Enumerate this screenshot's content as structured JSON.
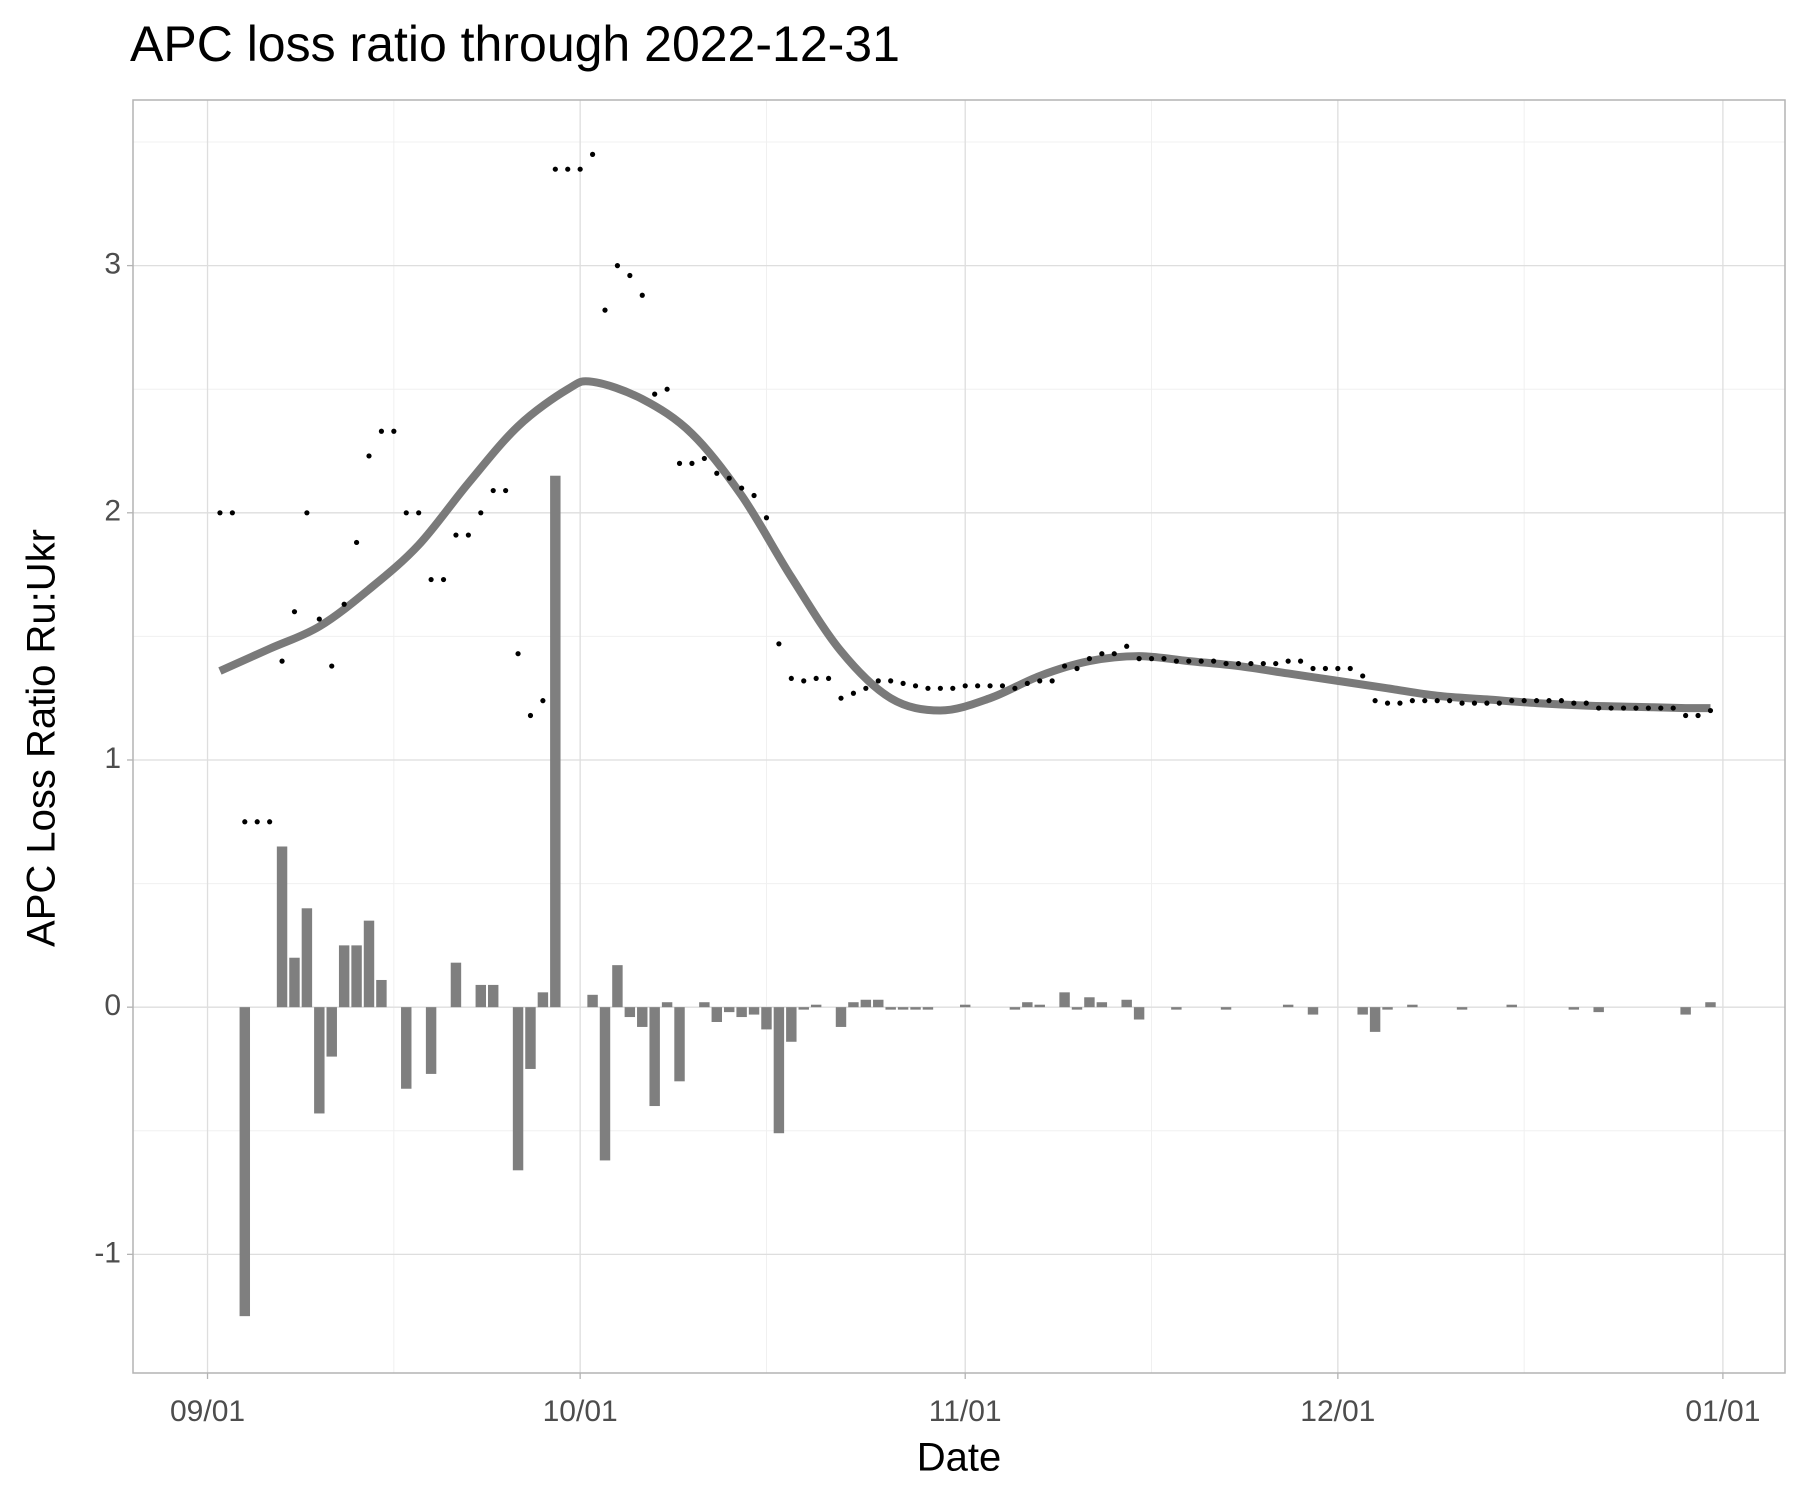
{
  "chart_data": {
    "type": "combo",
    "title": "APC loss ratio through 2022-12-31",
    "x_label": "Date",
    "y_label": "APC Loss Ratio Ru:Ukr",
    "xlim": [
      "08/26",
      "01/06"
    ],
    "xticks": [
      "09/01",
      "10/01",
      "11/01",
      "12/01",
      "01/01"
    ],
    "xminorticks": [
      "09/16",
      "10/16",
      "11/16",
      "12/16"
    ],
    "ylim": [
      -1.48,
      3.67
    ],
    "yticks": [
      -1,
      0,
      1,
      2,
      3
    ],
    "yminorticks": [
      -0.5,
      0.5,
      1.5,
      2.5,
      3.5
    ],
    "grid": true,
    "x": [
      "09/02",
      "09/03",
      "09/04",
      "09/05",
      "09/06",
      "09/07",
      "09/08",
      "09/09",
      "09/10",
      "09/11",
      "09/12",
      "09/13",
      "09/14",
      "09/15",
      "09/16",
      "09/17",
      "09/18",
      "09/19",
      "09/20",
      "09/21",
      "09/22",
      "09/23",
      "09/24",
      "09/25",
      "09/26",
      "09/27",
      "09/28",
      "09/29",
      "09/30",
      "10/01",
      "10/02",
      "10/03",
      "10/04",
      "10/05",
      "10/06",
      "10/07",
      "10/08",
      "10/09",
      "10/10",
      "10/11",
      "10/12",
      "10/13",
      "10/14",
      "10/15",
      "10/16",
      "10/17",
      "10/18",
      "10/19",
      "10/20",
      "10/21",
      "10/22",
      "10/23",
      "10/24",
      "10/25",
      "10/26",
      "10/27",
      "10/28",
      "10/29",
      "10/30",
      "10/31",
      "11/01",
      "11/02",
      "11/03",
      "11/04",
      "11/05",
      "11/06",
      "11/07",
      "11/08",
      "11/09",
      "11/10",
      "11/11",
      "11/12",
      "11/13",
      "11/14",
      "11/15",
      "11/16",
      "11/17",
      "11/18",
      "11/19",
      "11/20",
      "11/21",
      "11/22",
      "11/23",
      "11/24",
      "11/25",
      "11/26",
      "11/27",
      "11/28",
      "11/29",
      "11/30",
      "12/01",
      "12/02",
      "12/03",
      "12/04",
      "12/05",
      "12/06",
      "12/07",
      "12/08",
      "12/09",
      "12/10",
      "12/11",
      "12/12",
      "12/13",
      "12/14",
      "12/15",
      "12/16",
      "12/17",
      "12/18",
      "12/19",
      "12/20",
      "12/21",
      "12/22",
      "12/23",
      "12/24",
      "12/25",
      "12/26",
      "12/27",
      "12/28",
      "12/29",
      "12/30",
      "12/31"
    ],
    "layers": [
      {
        "type": "bar",
        "color": "#7f7f7f",
        "values": [
          null,
          0,
          -1.25,
          0,
          0,
          0.65,
          0.2,
          0.4,
          -0.43,
          -0.2,
          0.25,
          0.25,
          0.35,
          0.11,
          0,
          -0.33,
          0,
          -0.27,
          0,
          0.18,
          0,
          0.09,
          0.09,
          0,
          -0.66,
          -0.25,
          0.06,
          2.15,
          0,
          0,
          0.05,
          -0.62,
          0.17,
          -0.04,
          -0.08,
          -0.4,
          0.02,
          -0.3,
          0,
          0.02,
          -0.06,
          -0.02,
          -0.04,
          -0.03,
          -0.09,
          -0.51,
          -0.14,
          -0.01,
          0.01,
          0,
          -0.08,
          0.02,
          0.03,
          0.03,
          -0.01,
          -0.01,
          -0.01,
          -0.01,
          0,
          0,
          0.01,
          0,
          0,
          0,
          -0.01,
          0.02,
          0.01,
          0,
          0.06,
          -0.01,
          0.04,
          0.02,
          0,
          0.03,
          -0.05,
          0,
          0,
          -0.01,
          0,
          0,
          0,
          -0.01,
          0,
          0,
          0,
          0,
          0.01,
          0,
          -0.03,
          0,
          0,
          0,
          -0.03,
          -0.1,
          -0.01,
          0,
          0.01,
          0,
          0,
          0,
          -0.01,
          0,
          0,
          0,
          0.01,
          0,
          0,
          0,
          0,
          -0.01,
          0,
          -0.02,
          0,
          0,
          0,
          0,
          0,
          0,
          -0.03,
          0,
          0.02
        ]
      },
      {
        "type": "line",
        "color": "#7a7a7a",
        "x": [
          "09/02",
          "09/06",
          "09/10",
          "09/14",
          "09/18",
          "09/22",
          "09/26",
          "09/30",
          "10/02",
          "10/06",
          "10/10",
          "10/14",
          "10/18",
          "10/22",
          "10/26",
          "10/30",
          "11/03",
          "11/07",
          "11/11",
          "11/15",
          "11/19",
          "11/23",
          "11/27",
          "12/01",
          "12/05",
          "12/09",
          "12/13",
          "12/17",
          "12/21",
          "12/25",
          "12/29",
          "12/31"
        ],
        "values": [
          1.36,
          1.45,
          1.54,
          1.69,
          1.87,
          2.12,
          2.35,
          2.5,
          2.53,
          2.46,
          2.32,
          2.07,
          1.74,
          1.44,
          1.25,
          1.2,
          1.25,
          1.34,
          1.4,
          1.42,
          1.4,
          1.38,
          1.35,
          1.32,
          1.29,
          1.26,
          1.245,
          1.23,
          1.22,
          1.215,
          1.21,
          1.21
        ]
      },
      {
        "type": "scatter",
        "color": "#000000",
        "values": [
          2.0,
          2.0,
          0.75,
          0.75,
          0.75,
          1.4,
          1.6,
          2.0,
          1.57,
          1.38,
          1.63,
          1.88,
          2.23,
          2.33,
          2.33,
          2.0,
          2.0,
          1.73,
          1.73,
          1.91,
          1.91,
          2.0,
          2.09,
          2.09,
          1.43,
          1.18,
          1.24,
          3.39,
          3.39,
          3.39,
          3.45,
          2.82,
          3.0,
          2.96,
          2.88,
          2.48,
          2.5,
          2.2,
          2.2,
          2.22,
          2.16,
          2.14,
          2.1,
          2.07,
          1.98,
          1.47,
          1.33,
          1.32,
          1.33,
          1.33,
          1.25,
          1.27,
          1.29,
          1.32,
          1.32,
          1.31,
          1.3,
          1.29,
          1.29,
          1.29,
          1.3,
          1.3,
          1.3,
          1.3,
          1.29,
          1.31,
          1.32,
          1.32,
          1.38,
          1.37,
          1.41,
          1.43,
          1.43,
          1.46,
          1.41,
          1.41,
          1.41,
          1.4,
          1.4,
          1.4,
          1.4,
          1.39,
          1.39,
          1.39,
          1.39,
          1.39,
          1.4,
          1.4,
          1.37,
          1.37,
          1.37,
          1.37,
          1.34,
          1.24,
          1.23,
          1.23,
          1.24,
          1.24,
          1.24,
          1.24,
          1.23,
          1.23,
          1.23,
          1.23,
          1.24,
          1.24,
          1.24,
          1.24,
          1.24,
          1.23,
          1.23,
          1.21,
          1.21,
          1.21,
          1.21,
          1.21,
          1.21,
          1.21,
          1.18,
          1.18,
          1.2
        ]
      }
    ]
  }
}
